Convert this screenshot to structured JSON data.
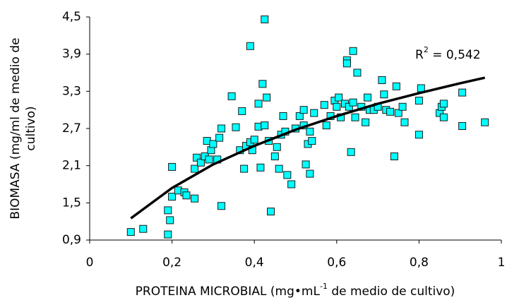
{
  "chart_data": {
    "type": "scatter",
    "xlabel": {
      "text": "PROTEINA MICROBIAL (mg•mL",
      "sup": "-1",
      "rest": " de medio de cultivo)"
    },
    "ylabel_lines": [
      "BIOMASA (mg/ml de medio de",
      "cultivo)"
    ],
    "annotation": {
      "text": "R",
      "sup": "2",
      "rest": " = 0,542"
    },
    "xlim": [
      0,
      1
    ],
    "ylim": [
      0.9,
      4.5
    ],
    "xticks": [
      0,
      {
        "value": 0.2,
        "label": "0,2"
      },
      {
        "value": 0.4,
        "label": "0,4"
      },
      {
        "value": 0.6,
        "label": "0,6"
      },
      {
        "value": 0.8,
        "label": "0,8"
      },
      1
    ],
    "yticks": [
      {
        "value": 0.9,
        "label": "0,9"
      },
      {
        "value": 1.5,
        "label": "1,5"
      },
      {
        "value": 2.1,
        "label": "2,1"
      },
      {
        "value": 2.7,
        "label": "2,7"
      },
      {
        "value": 3.3,
        "label": "3,3"
      },
      {
        "value": 3.9,
        "label": "3,9"
      },
      {
        "value": 4.5,
        "label": "4,5"
      }
    ],
    "color": "#00ffff",
    "edge_color": "#1a1a1a",
    "x": [
      0.1,
      0.13,
      0.19,
      0.19,
      0.195,
      0.2,
      0.2,
      0.215,
      0.23,
      0.235,
      0.255,
      0.255,
      0.26,
      0.27,
      0.28,
      0.285,
      0.29,
      0.295,
      0.3,
      0.31,
      0.315,
      0.32,
      0.32,
      0.345,
      0.355,
      0.365,
      0.37,
      0.375,
      0.38,
      0.39,
      0.39,
      0.395,
      0.4,
      0.41,
      0.41,
      0.415,
      0.42,
      0.425,
      0.425,
      0.43,
      0.435,
      0.44,
      0.45,
      0.455,
      0.46,
      0.465,
      0.47,
      0.475,
      0.48,
      0.49,
      0.5,
      0.51,
      0.52,
      0.52,
      0.525,
      0.53,
      0.535,
      0.535,
      0.54,
      0.545,
      0.57,
      0.575,
      0.585,
      0.595,
      0.6,
      0.605,
      0.61,
      0.62,
      0.625,
      0.625,
      0.63,
      0.635,
      0.64,
      0.64,
      0.645,
      0.65,
      0.66,
      0.67,
      0.675,
      0.68,
      0.69,
      0.7,
      0.71,
      0.715,
      0.72,
      0.73,
      0.74,
      0.745,
      0.75,
      0.76,
      0.765,
      0.8,
      0.8,
      0.805,
      0.85,
      0.855,
      0.86,
      0.86,
      0.905,
      0.905,
      0.96
    ],
    "values": [
      1.03,
      1.08,
      1.38,
      0.99,
      1.22,
      2.08,
      1.6,
      1.7,
      1.67,
      1.62,
      1.57,
      2.05,
      2.23,
      2.15,
      2.25,
      2.5,
      2.2,
      2.35,
      2.45,
      2.2,
      2.55,
      2.7,
      1.45,
      3.22,
      2.72,
      2.35,
      2.98,
      2.05,
      2.42,
      4.03,
      2.48,
      2.35,
      2.52,
      2.73,
      3.1,
      2.07,
      3.42,
      2.75,
      4.46,
      3.2,
      2.5,
      1.36,
      2.25,
      2.4,
      2.05,
      2.6,
      2.9,
      2.65,
      1.95,
      1.8,
      2.7,
      2.9,
      3.0,
      2.75,
      2.12,
      2.45,
      2.65,
      1.97,
      2.5,
      2.95,
      3.08,
      2.75,
      2.9,
      3.15,
      3.05,
      3.2,
      2.88,
      3.1,
      3.8,
      3.75,
      3.05,
      2.32,
      3.95,
      3.12,
      2.88,
      3.6,
      3.05,
      2.8,
      3.2,
      3.0,
      3.0,
      3.05,
      3.48,
      3.25,
      3.0,
      2.97,
      2.25,
      3.38,
      2.95,
      3.05,
      2.8,
      3.15,
      2.6,
      3.35,
      2.95,
      3.05,
      2.88,
      3.1,
      3.28,
      2.74,
      2.8
    ],
    "trendline": {
      "x": [
        0.1,
        0.2,
        0.3,
        0.4,
        0.5,
        0.6,
        0.7,
        0.8,
        0.9,
        0.96
      ],
      "values": [
        1.25,
        1.74,
        2.12,
        2.42,
        2.68,
        2.9,
        3.1,
        3.27,
        3.43,
        3.52
      ]
    }
  }
}
